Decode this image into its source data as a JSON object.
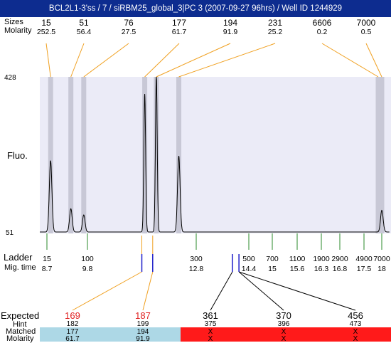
{
  "title": "BCL2L1-3'ss / 7 / siRBM25_global_3|PC 3 (2007-09-27 96hrs) / Well ID 1244929",
  "labels": {
    "sizes": "Sizes",
    "molarity": "Molarity",
    "fluo": "Fluo.",
    "ladder": "Ladder",
    "mig_time": "Mig. time",
    "expected": "Expected",
    "hint": "Hint",
    "matched": "Matched",
    "molarity_bottom": "Molarity"
  },
  "y_axis": {
    "top": "428",
    "bottom": "51"
  },
  "colors": {
    "title_bg": "#0d2c8f",
    "plot_bg": "#ebebf7",
    "band": "#c8c8d6",
    "connector": "#f0a020",
    "ladder_tick": "#2a8a2a",
    "marker": "#1c1cc8",
    "expected_hit": "#e02020",
    "matched_ok": "#add8e6",
    "matched_miss": "#ff1a1a"
  },
  "chart_data": {
    "type": "line",
    "title": "BCL2L1-3'ss / 7 / siRBM25_global_3|PC 3 (2007-09-27 96hrs) / Well ID 1244929",
    "ylabel": "Fluo.",
    "ylim": [
      51,
      428
    ],
    "peaks": [
      {
        "size": "15",
        "molarity": "252.5",
        "x": 8.8,
        "height": 0.46
      },
      {
        "size": "51",
        "molarity": "56.4",
        "x": 9.35,
        "height": 0.15
      },
      {
        "size": "76",
        "molarity": "27.5",
        "x": 9.7,
        "height": 0.11
      },
      {
        "size": "177",
        "molarity": "61.7",
        "x": 11.38,
        "height": 0.89
      },
      {
        "size": "194",
        "molarity": "91.9",
        "x": 11.7,
        "height": 1.0
      },
      {
        "size": "231",
        "molarity": "25.2",
        "x": 12.32,
        "height": 0.49
      },
      {
        "size": "6606",
        "molarity": "0.2",
        "x": 17.9,
        "height": 0.0
      },
      {
        "size": "7000",
        "molarity": "0.5",
        "x": 18.0,
        "height": 0.14
      }
    ],
    "ladder": [
      {
        "size": "15",
        "time": "8.7"
      },
      {
        "size": "100",
        "time": "9.8"
      },
      {
        "size": "300",
        "time": "12.8"
      },
      {
        "size": "500",
        "time": "14.4"
      },
      {
        "size": "700",
        "time": "15"
      },
      {
        "size": "1100",
        "time": "15.6"
      },
      {
        "size": "1900",
        "time": "16.3"
      },
      {
        "size": "2900",
        "time": "16.8"
      },
      {
        "size": "4900",
        "time": "17.5"
      },
      {
        "size": "7000",
        "time": "18"
      }
    ],
    "markers_mig_time": [
      11.3,
      11.6,
      13.9,
      14.1
    ],
    "expected": [
      {
        "expected": "169",
        "hint": "182",
        "matched": "177",
        "molarity": "61.7",
        "found": true,
        "marker": 0
      },
      {
        "expected": "187",
        "hint": "199",
        "matched": "194",
        "molarity": "91.9",
        "found": true,
        "marker": 1
      },
      {
        "expected": "361",
        "hint": "375",
        "matched": "X",
        "molarity": "X",
        "found": false,
        "marker": 2
      },
      {
        "expected": "370",
        "hint": "396",
        "matched": "X",
        "molarity": "X",
        "found": false,
        "marker": 3
      },
      {
        "expected": "456",
        "hint": "473",
        "matched": "X",
        "molarity": "X",
        "found": false,
        "marker": 3
      }
    ]
  }
}
